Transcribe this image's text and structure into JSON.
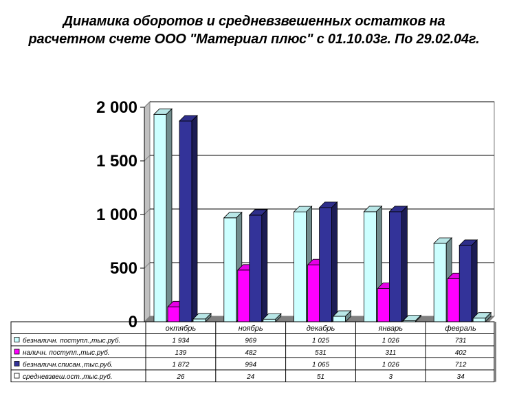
{
  "title_line1": "Динамика оборотов и средневзвешенных остатков на",
  "title_line2": "расчетном счете ООО \"Материал плюс\" с 01.10.03г. По 29.02.04г.",
  "chart_data": {
    "type": "bar",
    "title": "Динамика оборотов и средневзвешенных остатков на расчетном счете ООО \"Материал плюс\" с 01.10.03г. По 29.02.04г.",
    "categories": [
      "октябрь",
      "ноябрь",
      "декабрь",
      "январь",
      "февраль"
    ],
    "series": [
      {
        "name": "безналичн. поступл.,тыс.руб.",
        "values": [
          1934,
          969,
          1025,
          1026,
          731
        ],
        "labels": [
          "1 934",
          "969",
          "1 025",
          "1 026",
          "731"
        ],
        "color": "#CCFFFF",
        "legend_marker": "#CCFFFF"
      },
      {
        "name": "наличн. поступл.,тыс.руб.",
        "values": [
          139,
          482,
          531,
          311,
          402
        ],
        "labels": [
          "139",
          "482",
          "531",
          "311",
          "402"
        ],
        "color": "#FF00FF",
        "legend_marker": "#FF00FF"
      },
      {
        "name": "безналичн.списан.,тыс.руб.",
        "values": [
          1872,
          994,
          1065,
          1026,
          712
        ],
        "labels": [
          "1 872",
          "994",
          "1 065",
          "1 026",
          "712"
        ],
        "color": "#333399",
        "legend_marker": "#333399"
      },
      {
        "name": "средневзвеш.ост.,тыс.руб.",
        "values": [
          26,
          24,
          51,
          3,
          34
        ],
        "labels": [
          "26",
          "24",
          "51",
          "3",
          "34"
        ],
        "color": "#CCFFFF",
        "legend_marker": "#FFFFFF"
      }
    ],
    "yticks": [
      "0",
      "500",
      "1 000",
      "1 500",
      "2 000"
    ],
    "ylim": [
      0,
      2000
    ],
    "grid": true,
    "legend": "data table below chart",
    "three_d": true
  }
}
